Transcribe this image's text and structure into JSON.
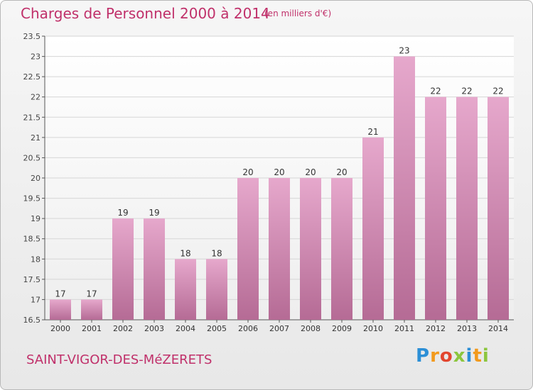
{
  "title": "Charges de Personnel 2000 à 2014",
  "subtitle": "(en milliers d'€)",
  "place": "SAINT-VIGOR-DES-MéZERETS",
  "logo": {
    "text": "Proxiti",
    "letters": [
      {
        "ch": "P",
        "color": "#2c8fd6"
      },
      {
        "ch": "r",
        "color": "#f29a1d"
      },
      {
        "ch": "o",
        "color": "#e2462f"
      },
      {
        "ch": "x",
        "color": "#8cc63e"
      },
      {
        "ch": "i",
        "color": "#2c8fd6"
      },
      {
        "ch": "t",
        "color": "#f29a1d"
      },
      {
        "ch": "i",
        "color": "#8cc63e"
      }
    ]
  },
  "colors": {
    "bar_top": "#e6a8cc",
    "bar_bottom": "#b56b95",
    "text": "#c0306a"
  },
  "chart_data": {
    "type": "bar",
    "categories": [
      "2000",
      "2001",
      "2002",
      "2003",
      "2004",
      "2005",
      "2006",
      "2007",
      "2008",
      "2009",
      "2010",
      "2011",
      "2012",
      "2013",
      "2014"
    ],
    "values": [
      17,
      17,
      19,
      19,
      18,
      18,
      20,
      20,
      20,
      20,
      21,
      23,
      22,
      22,
      22
    ],
    "data_labels": [
      "17",
      "17",
      "19",
      "19",
      "18",
      "18",
      "20",
      "20",
      "20",
      "20",
      "21",
      "23",
      "22",
      "22",
      "22"
    ],
    "ylim": [
      16.5,
      23.5
    ],
    "yticks": [
      "16.5",
      "17",
      "17.5",
      "18",
      "18.5",
      "19",
      "19.5",
      "20",
      "20.5",
      "21",
      "21.5",
      "22",
      "22.5",
      "23",
      "23.5"
    ],
    "grid": true
  }
}
